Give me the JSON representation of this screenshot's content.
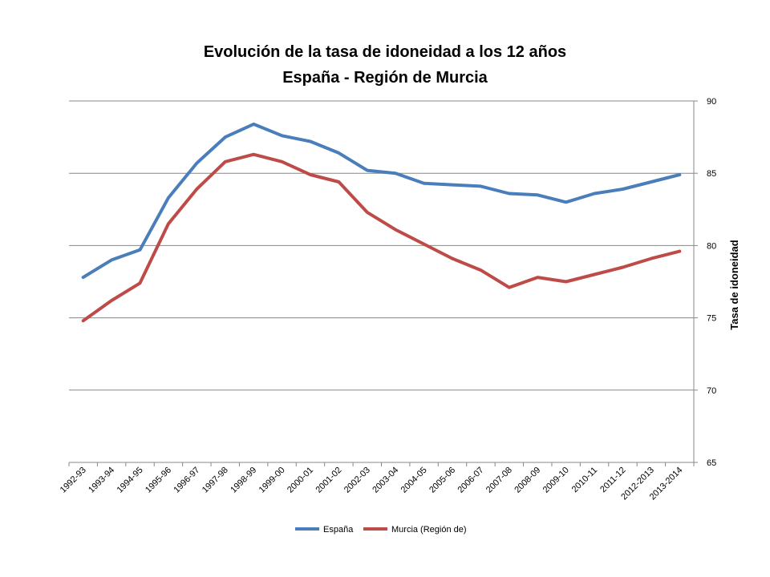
{
  "chart_data": {
    "type": "line",
    "title": "Evolución de la tasa de idoneidad a los 12 años",
    "subtitle": "España - Región de Murcia",
    "ylabel": "Tasa de idoneidad",
    "xlabel": "",
    "ylim": [
      65,
      90
    ],
    "yticks": [
      65,
      70,
      75,
      80,
      85,
      90
    ],
    "y_axis_side": "right",
    "grid": true,
    "legend_position": "bottom",
    "categories": [
      "1992-93",
      "1993-94",
      "1994-95",
      "1995-96",
      "1996-97",
      "1997-98",
      "1998-99",
      "1999-00",
      "2000-01",
      "2001-02",
      "2002-03",
      "2003-04",
      "2004-05",
      "2005-06",
      "2006-07",
      "2007-08",
      "2008-09",
      "2009-10",
      "2010-11",
      "2011-12",
      "2012-2013",
      "2013-2014"
    ],
    "series": [
      {
        "name": "España",
        "color": "#4a7ebb",
        "values": [
          77.8,
          79.0,
          79.7,
          83.3,
          85.7,
          87.5,
          88.4,
          87.6,
          87.2,
          86.4,
          85.2,
          85.0,
          84.3,
          84.2,
          84.1,
          83.6,
          83.5,
          83.0,
          83.6,
          83.9,
          84.4,
          84.9
        ]
      },
      {
        "name": "Murcia (Región de)",
        "color": "#be4b48",
        "values": [
          74.8,
          76.2,
          77.4,
          81.5,
          83.9,
          85.8,
          86.3,
          85.8,
          84.9,
          84.4,
          82.3,
          81.1,
          80.1,
          79.1,
          78.3,
          77.1,
          77.8,
          77.5,
          78.0,
          78.5,
          79.1,
          79.6
        ]
      }
    ]
  }
}
